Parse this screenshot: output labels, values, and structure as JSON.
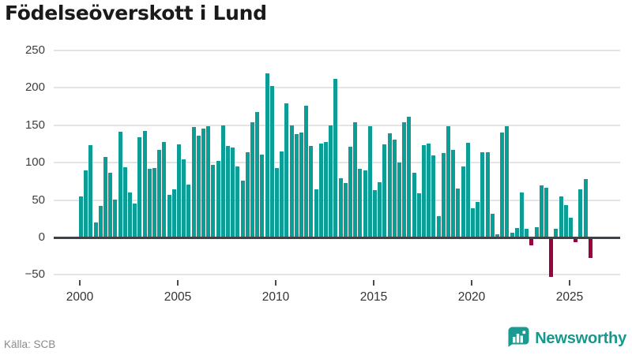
{
  "title": "Födelseöverskott i Lund",
  "source_label": "Källa: SCB",
  "branding": {
    "wordmark": "Newsworthy",
    "color": "#17988f"
  },
  "chart_data": {
    "type": "bar",
    "title": "Födelseöverskott i Lund",
    "x_start": "2000 Q1",
    "frequency": "quarterly",
    "x_ticks": [
      "2000",
      "2005",
      "2010",
      "2015",
      "2020",
      "2025"
    ],
    "quarters_per_tick": 20,
    "y_ticks": [
      250,
      200,
      150,
      100,
      50,
      0,
      -50
    ],
    "y_tick_labels": [
      "250",
      "200",
      "150",
      "100",
      "50",
      "0",
      "−50"
    ],
    "ylim": [
      -65,
      260
    ],
    "grid": true,
    "legend": "none",
    "positive_color": "#0a9e96",
    "negative_color": "#970540",
    "zero_line_color": "#3f4245",
    "values": [
      55,
      90,
      123,
      20,
      42,
      108,
      87,
      51,
      141,
      94,
      60,
      45,
      134,
      142,
      92,
      93,
      117,
      128,
      57,
      64,
      125,
      104,
      71,
      148,
      136,
      146,
      149,
      97,
      102,
      150,
      122,
      120,
      95,
      76,
      114,
      154,
      168,
      111,
      219,
      203,
      93,
      115,
      179,
      150,
      138,
      140,
      176,
      122,
      64,
      126,
      128,
      150,
      212,
      79,
      73,
      121,
      154,
      92,
      90,
      149,
      63,
      74,
      125,
      139,
      131,
      100,
      154,
      161,
      86,
      59,
      123,
      126,
      110,
      28,
      113,
      149,
      117,
      65,
      95,
      127,
      39,
      47,
      114,
      114,
      32,
      4,
      140,
      149,
      6,
      13,
      60,
      12,
      -9,
      14,
      70,
      66,
      -52,
      12,
      55,
      43,
      26,
      -5,
      64,
      78,
      -26
    ]
  }
}
